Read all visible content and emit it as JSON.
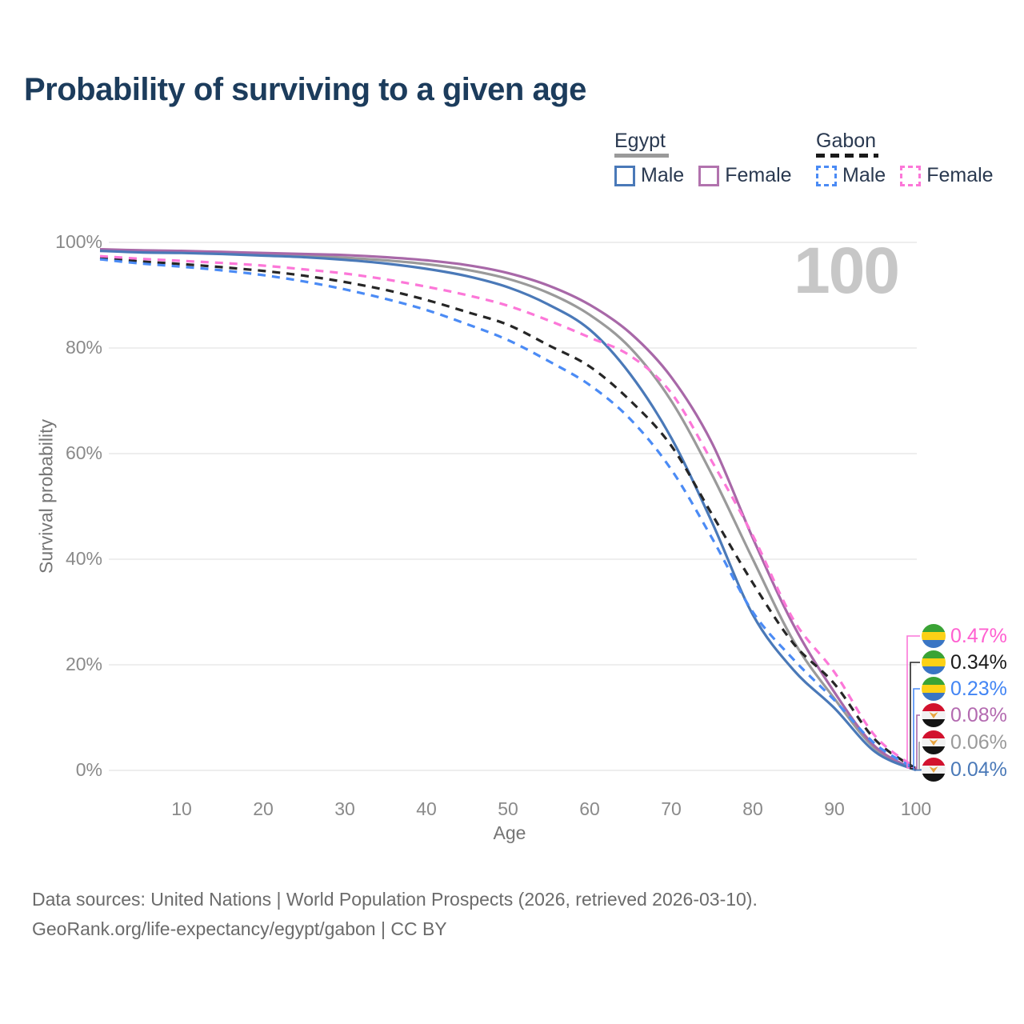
{
  "title": "Probability of surviving to a given age",
  "watermark": "100",
  "legend": {
    "groups": [
      {
        "label": "Egypt",
        "line_style": "solid",
        "items": [
          {
            "label": "Male",
            "color": "#4a79b8",
            "dashed": false,
            "series": "egypt-male"
          },
          {
            "label": "Female",
            "color": "#b273ae",
            "dashed": false,
            "series": "egypt-female"
          }
        ]
      },
      {
        "label": "Gabon",
        "line_style": "dashed",
        "items": [
          {
            "label": "Male",
            "color": "#4b8bf5",
            "dashed": true,
            "series": "gabon-male"
          },
          {
            "label": "Female",
            "color": "#fc77d8",
            "dashed": true,
            "series": "gabon-female"
          }
        ]
      }
    ]
  },
  "chart_data": {
    "type": "line",
    "title": "Probability of surviving to a given age",
    "xlabel": "Age",
    "ylabel": "Survival probability",
    "x_range": [
      0,
      100
    ],
    "y_range_pct": [
      0,
      100
    ],
    "grid": "horizontal",
    "x_ticks": [
      10,
      20,
      30,
      40,
      50,
      60,
      70,
      80,
      90,
      100
    ],
    "y_ticks": [
      {
        "value": 0,
        "label": "0%"
      },
      {
        "value": 20,
        "label": "20%"
      },
      {
        "value": 40,
        "label": "40%"
      },
      {
        "value": 60,
        "label": "60%"
      },
      {
        "value": 80,
        "label": "80%"
      },
      {
        "value": 100,
        "label": "100%"
      }
    ],
    "x": [
      0,
      5,
      10,
      15,
      20,
      25,
      30,
      35,
      40,
      45,
      50,
      55,
      60,
      65,
      70,
      75,
      80,
      85,
      90,
      95,
      100
    ],
    "series": [
      {
        "name": "Egypt Total",
        "color": "#9a9a9a",
        "dashed": false,
        "values": [
          98.5,
          98.3,
          98.1,
          98.0,
          97.8,
          97.5,
          97.1,
          96.6,
          95.9,
          94.8,
          93.1,
          90.4,
          86.3,
          80.0,
          70.0,
          56.0,
          40.0,
          24.5,
          13.6,
          4.1,
          0.06
        ]
      },
      {
        "name": "Egypt Female",
        "color": "#a868a8",
        "dashed": false,
        "values": [
          98.7,
          98.5,
          98.4,
          98.2,
          98.0,
          97.8,
          97.6,
          97.2,
          96.6,
          95.7,
          94.2,
          91.8,
          88.2,
          82.8,
          74.5,
          62.0,
          44.0,
          27.5,
          14.8,
          4.5,
          0.08
        ]
      },
      {
        "name": "Egypt Male",
        "color": "#4a79b8",
        "dashed": false,
        "values": [
          98.4,
          98.1,
          98.0,
          97.8,
          97.5,
          97.2,
          96.7,
          96.0,
          95.0,
          93.6,
          91.5,
          88.2,
          83.5,
          75.0,
          63.0,
          47.0,
          29.5,
          19.0,
          11.8,
          3.5,
          0.04
        ]
      },
      {
        "name": "Gabon Total",
        "color": "#262626",
        "dashed": true,
        "values": [
          97.1,
          96.4,
          95.9,
          95.3,
          94.6,
          93.7,
          92.5,
          91.0,
          89.1,
          86.8,
          84.4,
          80.5,
          76.5,
          70.0,
          61.5,
          48.5,
          35.5,
          24.0,
          16.4,
          5.8,
          0.34
        ]
      },
      {
        "name": "Gabon Female",
        "color": "#fc77d8",
        "dashed": true,
        "values": [
          97.4,
          96.9,
          96.5,
          96.1,
          95.6,
          94.9,
          94.1,
          93.0,
          91.6,
          90.0,
          88.0,
          85.2,
          82.0,
          78.5,
          71.5,
          58.5,
          44.5,
          28.5,
          18.6,
          6.5,
          0.47
        ]
      },
      {
        "name": "Gabon Male",
        "color": "#4b8bf5",
        "dashed": true,
        "values": [
          96.8,
          96.0,
          95.4,
          94.7,
          93.8,
          92.6,
          91.1,
          89.3,
          87.2,
          84.5,
          81.5,
          77.5,
          73.0,
          66.5,
          57.0,
          44.0,
          30.0,
          21.0,
          13.3,
          5.0,
          0.23
        ]
      }
    ],
    "end_labels": [
      {
        "value": "0.47%",
        "country": "gabon",
        "series": "Gabon Female",
        "color": "#ff5fd0"
      },
      {
        "value": "0.34%",
        "country": "gabon",
        "series": "Gabon Total",
        "color": "#1a1a1a"
      },
      {
        "value": "0.23%",
        "country": "gabon",
        "series": "Gabon Male",
        "color": "#4285f4"
      },
      {
        "value": "0.08%",
        "country": "egypt",
        "series": "Egypt Female",
        "color": "#b36ab0"
      },
      {
        "value": "0.06%",
        "country": "egypt",
        "series": "Egypt Total",
        "color": "#9a9a9a"
      },
      {
        "value": "0.04%",
        "country": "egypt",
        "series": "Egypt Male",
        "color": "#4a79b8"
      }
    ],
    "annotations": {
      "watermark": "100"
    }
  },
  "footer": {
    "line1": "Data sources: United Nations | World Population Prospects (2026, retrieved 2026-03-10).",
    "line2": "GeoRank.org/life-expectancy/egypt/gabon | CC BY"
  }
}
